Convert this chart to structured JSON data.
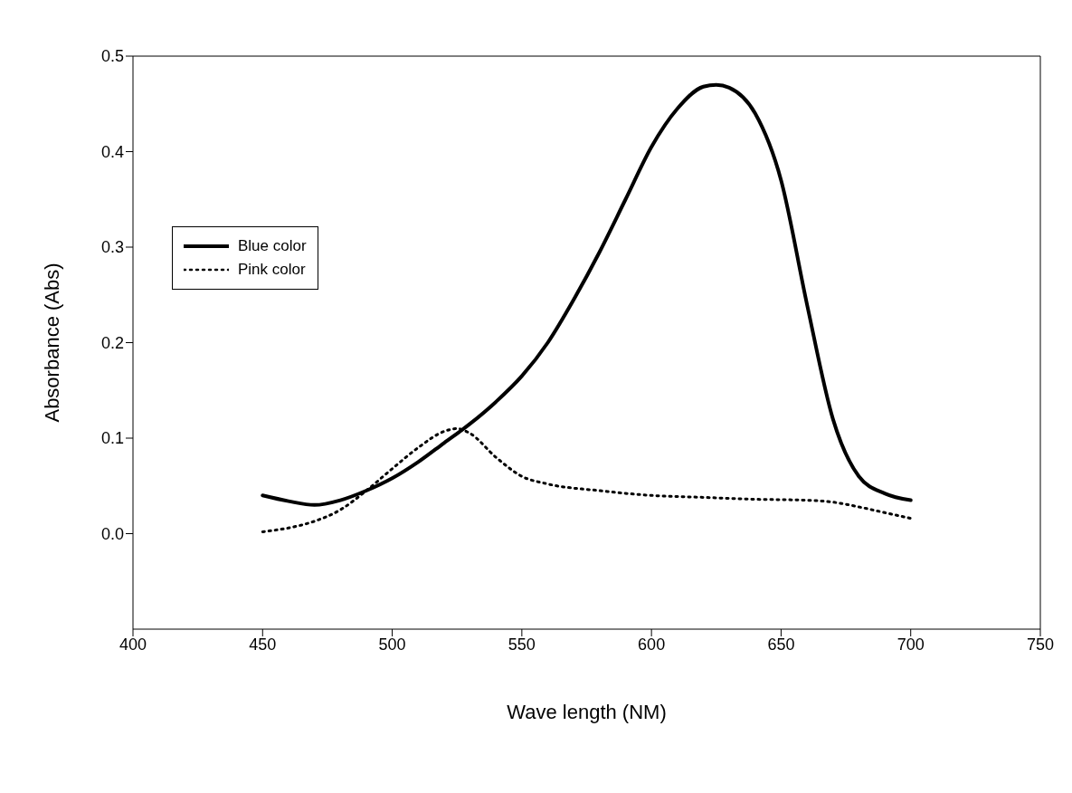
{
  "chart_data": {
    "type": "line",
    "xlabel": "Wave length (NM)",
    "ylabel": "Absorbance (Abs)",
    "xlim": [
      400,
      750
    ],
    "xticks": [
      400,
      450,
      500,
      550,
      600,
      650,
      700,
      750
    ],
    "ylim": [
      -0.1,
      0.5
    ],
    "yticks": [
      {
        "value": 0,
        "label": "0.0"
      },
      0.1,
      0.2,
      0.3,
      0.4,
      0.5
    ],
    "grid": false,
    "legend": "left",
    "marker": "none",
    "series": [
      {
        "name": "Blue color",
        "color": "#000000",
        "line_style": "solid",
        "x": [
          450,
          460,
          470,
          480,
          490,
          500,
          510,
          520,
          530,
          540,
          550,
          560,
          570,
          580,
          590,
          600,
          610,
          620,
          625,
          630,
          640,
          650,
          660,
          670,
          680,
          690,
          700
        ],
        "values": [
          0.04,
          0.034,
          0.03,
          0.035,
          0.045,
          0.058,
          0.075,
          0.095,
          0.115,
          0.138,
          0.165,
          0.2,
          0.245,
          0.295,
          0.35,
          0.405,
          0.445,
          0.468,
          0.47,
          0.467,
          0.44,
          0.37,
          0.24,
          0.12,
          0.06,
          0.042,
          0.035
        ]
      },
      {
        "name": "Pink color",
        "color": "#000000",
        "line_style": "dotted",
        "x": [
          450,
          460,
          470,
          480,
          490,
          500,
          510,
          520,
          525,
          530,
          540,
          550,
          560,
          580,
          600,
          620,
          640,
          660,
          670,
          680,
          690,
          700
        ],
        "values": [
          0.002,
          0.006,
          0.013,
          0.025,
          0.045,
          0.068,
          0.09,
          0.107,
          0.11,
          0.105,
          0.08,
          0.06,
          0.052,
          0.045,
          0.04,
          0.038,
          0.036,
          0.035,
          0.033,
          0.028,
          0.022,
          0.016
        ]
      }
    ]
  }
}
